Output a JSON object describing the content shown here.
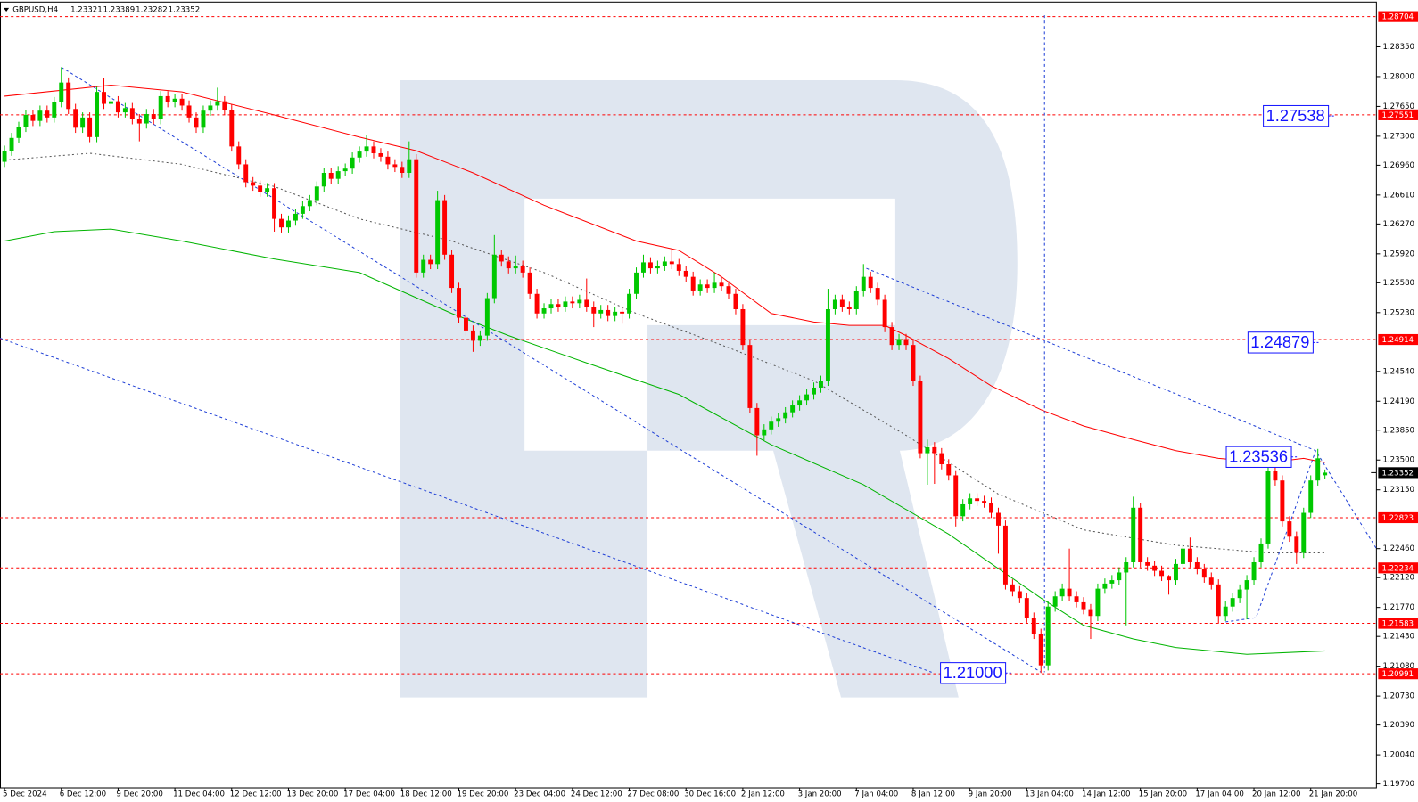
{
  "chart_data": {
    "type": "candlestick",
    "title": "GBPUSD,H4",
    "up_color": "#00c800",
    "down_color": "#ff0000",
    "open": [
      1.27,
      1.2713,
      1.2728,
      1.2741,
      1.2755,
      1.2748,
      1.276,
      1.2752,
      1.277,
      1.2793,
      1.2762,
      1.274,
      1.2752,
      1.2729,
      1.2782,
      1.2768,
      1.2771,
      1.2758,
      1.2763,
      1.275,
      1.2745,
      1.2756,
      1.275,
      1.2777,
      1.277,
      1.2774,
      1.2766,
      1.2752,
      1.274,
      1.276,
      1.2766,
      1.2771,
      1.2761,
      1.2718,
      1.2697,
      1.2676,
      1.2672,
      1.2665,
      1.2669,
      1.2633,
      1.2623,
      1.2631,
      1.2639,
      1.2648,
      1.2655,
      1.2671,
      1.2687,
      1.268,
      1.2689,
      1.2692,
      1.2705,
      1.2712,
      1.2718,
      1.271,
      1.2706,
      1.2697,
      1.2694,
      1.2687,
      1.2703,
      1.257,
      1.2585,
      1.258,
      1.2655,
      1.2591,
      1.2552,
      1.2517,
      1.2502,
      1.249,
      1.2496,
      1.254,
      1.2591,
      1.2583,
      1.2575,
      1.2578,
      1.257,
      1.2545,
      1.2522,
      1.2528,
      1.2533,
      1.253,
      1.2536,
      1.2534,
      1.2538,
      1.253,
      1.2522,
      1.2526,
      1.2519,
      1.2524,
      1.2522,
      1.2545,
      1.257,
      1.2582,
      1.2575,
      1.2578,
      1.2583,
      1.258,
      1.2572,
      1.2565,
      1.2549,
      1.2556,
      1.2552,
      1.2558,
      1.2554,
      1.2545,
      1.2527,
      1.2485,
      1.2411,
      1.2379,
      1.2386,
      1.2395,
      1.2399,
      1.2406,
      1.2414,
      1.242,
      1.2427,
      1.2435,
      1.2443,
      1.2527,
      1.2538,
      1.253,
      1.2527,
      1.2548,
      1.2565,
      1.2552,
      1.2538,
      1.2506,
      1.2485,
      1.2492,
      1.2485,
      1.2443,
      1.2358,
      1.2365,
      1.2358,
      1.2345,
      1.2332,
      1.2284,
      1.2298,
      1.2305,
      1.2302,
      1.23,
      1.2288,
      1.2273,
      1.2204,
      1.2196,
      1.2188,
      1.2165,
      1.2146,
      1.2109,
      1.2178,
      1.219,
      1.2199,
      1.219,
      1.2183,
      1.2175,
      1.2167,
      1.2199,
      1.2205,
      1.2209,
      1.2218,
      1.223,
      1.2294,
      1.223,
      1.2226,
      1.222,
      1.2214,
      1.2209,
      1.2228,
      1.2246,
      1.223,
      1.2222,
      1.2212,
      1.2204,
      1.2167,
      1.2178,
      1.2188,
      1.2198,
      1.2209,
      1.223,
      1.2252,
      1.2337,
      1.2326,
      1.2278,
      1.226,
      1.2241,
      1.2288,
      1.2326,
      1.23321
    ],
    "high": [
      1.2719,
      1.2734,
      1.2747,
      1.2761,
      1.2761,
      1.2766,
      1.2766,
      1.2776,
      1.2811,
      1.2799,
      1.2768,
      1.2758,
      1.2758,
      1.2788,
      1.2798,
      1.2777,
      1.2777,
      1.2769,
      1.2769,
      1.2756,
      1.2762,
      1.2762,
      1.2783,
      1.2783,
      1.278,
      1.278,
      1.2772,
      1.2758,
      1.2766,
      1.2772,
      1.2787,
      1.2777,
      1.2767,
      1.2724,
      1.2703,
      1.2682,
      1.2678,
      1.2675,
      1.2675,
      1.2639,
      1.2637,
      1.2645,
      1.2654,
      1.2661,
      1.2677,
      1.2693,
      1.2693,
      1.2695,
      1.2698,
      1.2711,
      1.2718,
      1.2731,
      1.2724,
      1.2716,
      1.2712,
      1.2703,
      1.27,
      1.2724,
      1.2709,
      1.2591,
      1.2591,
      1.2666,
      1.2661,
      1.2597,
      1.2558,
      1.2523,
      1.2508,
      1.2502,
      1.2546,
      1.2614,
      1.2597,
      1.2589,
      1.259,
      1.2584,
      1.2576,
      1.2551,
      1.2534,
      1.2539,
      1.2539,
      1.2542,
      1.2542,
      1.2544,
      1.2563,
      1.2536,
      1.2532,
      1.2532,
      1.253,
      1.253,
      1.2551,
      1.2576,
      1.2591,
      1.2588,
      1.2584,
      1.2589,
      1.2598,
      1.2586,
      1.2578,
      1.2571,
      1.2562,
      1.2562,
      1.257,
      1.2564,
      1.256,
      1.2551,
      1.2533,
      1.2491,
      1.2417,
      1.2392,
      1.2401,
      1.2405,
      1.2412,
      1.242,
      1.2426,
      1.2433,
      1.2441,
      1.2449,
      1.2551,
      1.2544,
      1.2544,
      1.2536,
      1.2554,
      1.258,
      1.2571,
      1.2558,
      1.2544,
      1.2512,
      1.2498,
      1.2498,
      1.2491,
      1.2449,
      1.2374,
      1.2371,
      1.2364,
      1.2351,
      1.2338,
      1.2304,
      1.2311,
      1.2311,
      1.2308,
      1.2306,
      1.2294,
      1.2279,
      1.221,
      1.2202,
      1.2194,
      1.2171,
      1.2152,
      1.2184,
      1.2196,
      1.2205,
      1.2246,
      1.2196,
      1.2189,
      1.2181,
      1.2205,
      1.2211,
      1.2215,
      1.2224,
      1.2236,
      1.2307,
      1.23,
      1.2236,
      1.2232,
      1.2226,
      1.2215,
      1.2234,
      1.2252,
      1.2259,
      1.2236,
      1.2228,
      1.2218,
      1.221,
      1.2184,
      1.2194,
      1.2204,
      1.2215,
      1.2236,
      1.2258,
      1.2343,
      1.2352,
      1.2332,
      1.2284,
      1.2266,
      1.2294,
      1.2332,
      1.2363,
      1.23389
    ],
    "low": [
      1.2694,
      1.2707,
      1.2722,
      1.2735,
      1.2742,
      1.2742,
      1.2746,
      1.2746,
      1.2764,
      1.2756,
      1.2734,
      1.2734,
      1.2723,
      1.2723,
      1.2762,
      1.2762,
      1.2752,
      1.2752,
      1.2744,
      1.2724,
      1.2739,
      1.2744,
      1.2744,
      1.2764,
      1.2764,
      1.276,
      1.2746,
      1.2734,
      1.2734,
      1.2754,
      1.276,
      1.2755,
      1.2712,
      1.2691,
      1.267,
      1.2666,
      1.2659,
      1.2659,
      1.2618,
      1.2617,
      1.2617,
      1.2625,
      1.2633,
      1.2642,
      1.2649,
      1.2665,
      1.2674,
      1.2674,
      1.2683,
      1.2686,
      1.2699,
      1.2706,
      1.2704,
      1.27,
      1.2691,
      1.2688,
      1.2681,
      1.2681,
      1.2564,
      1.2564,
      1.2574,
      1.2574,
      1.2585,
      1.2546,
      1.2511,
      1.2496,
      1.2477,
      1.2484,
      1.249,
      1.2534,
      1.2577,
      1.2569,
      1.2569,
      1.2564,
      1.2539,
      1.2516,
      1.2516,
      1.2522,
      1.2524,
      1.2524,
      1.2528,
      1.2528,
      1.2524,
      1.2506,
      1.2516,
      1.2513,
      1.2513,
      1.251,
      1.2516,
      1.2539,
      1.2564,
      1.2569,
      1.2569,
      1.2572,
      1.2574,
      1.2566,
      1.2559,
      1.2543,
      1.2543,
      1.2546,
      1.2546,
      1.2548,
      1.2539,
      1.2521,
      1.2479,
      1.2405,
      1.2355,
      1.2373,
      1.238,
      1.2389,
      1.2393,
      1.24,
      1.2408,
      1.2414,
      1.2421,
      1.2429,
      1.2437,
      1.2521,
      1.2524,
      1.2521,
      1.2521,
      1.2542,
      1.2546,
      1.2532,
      1.25,
      1.2479,
      1.2479,
      1.2479,
      1.2437,
      1.2352,
      1.2321,
      1.2322,
      1.2339,
      1.2326,
      1.2272,
      1.2278,
      1.2292,
      1.2296,
      1.2294,
      1.2282,
      1.224,
      1.2198,
      1.219,
      1.2182,
      1.2159,
      1.214,
      1.21,
      1.2103,
      1.2172,
      1.2184,
      1.2184,
      1.2177,
      1.2169,
      1.214,
      1.2161,
      1.2193,
      1.2199,
      1.2203,
      1.2156,
      1.2224,
      1.2224,
      1.222,
      1.2214,
      1.2208,
      1.2192,
      1.2203,
      1.2222,
      1.2224,
      1.2216,
      1.2206,
      1.2198,
      1.2158,
      1.2161,
      1.2172,
      1.2182,
      1.2163,
      1.2203,
      1.2224,
      1.2246,
      1.232,
      1.2272,
      1.2254,
      1.2228,
      1.2235,
      1.2282,
      1.232,
      1.23282
    ],
    "close": [
      1.2713,
      1.2728,
      1.2741,
      1.2755,
      1.2748,
      1.276,
      1.2752,
      1.277,
      1.2793,
      1.2762,
      1.274,
      1.2752,
      1.2729,
      1.2782,
      1.2768,
      1.2771,
      1.2758,
      1.2763,
      1.275,
      1.2745,
      1.2756,
      1.275,
      1.2777,
      1.277,
      1.2774,
      1.2766,
      1.2752,
      1.274,
      1.276,
      1.2766,
      1.2771,
      1.2761,
      1.2718,
      1.2697,
      1.2676,
      1.2672,
      1.2665,
      1.2669,
      1.2633,
      1.2623,
      1.2631,
      1.2639,
      1.2648,
      1.2655,
      1.2671,
      1.2687,
      1.268,
      1.2689,
      1.2692,
      1.2705,
      1.2712,
      1.2718,
      1.271,
      1.2706,
      1.2697,
      1.2694,
      1.2687,
      1.2703,
      1.257,
      1.2585,
      1.258,
      1.2655,
      1.2591,
      1.2552,
      1.2517,
      1.2502,
      1.249,
      1.2496,
      1.254,
      1.2591,
      1.2583,
      1.2575,
      1.2578,
      1.257,
      1.2545,
      1.2522,
      1.2528,
      1.2533,
      1.253,
      1.2536,
      1.2534,
      1.2538,
      1.253,
      1.2522,
      1.2526,
      1.2519,
      1.2524,
      1.2522,
      1.2545,
      1.257,
      1.2582,
      1.2575,
      1.2578,
      1.2583,
      1.258,
      1.2572,
      1.2565,
      1.2549,
      1.2556,
      1.2552,
      1.2558,
      1.2554,
      1.2545,
      1.2527,
      1.2485,
      1.2411,
      1.2379,
      1.2386,
      1.2395,
      1.2399,
      1.2406,
      1.2414,
      1.242,
      1.2427,
      1.2435,
      1.2443,
      1.2527,
      1.2538,
      1.253,
      1.2527,
      1.2548,
      1.2565,
      1.2552,
      1.2538,
      1.2506,
      1.2485,
      1.2492,
      1.2485,
      1.2443,
      1.2358,
      1.2365,
      1.2358,
      1.2345,
      1.2332,
      1.2284,
      1.2298,
      1.2305,
      1.2302,
      1.23,
      1.2288,
      1.2273,
      1.2204,
      1.2196,
      1.2188,
      1.2165,
      1.2146,
      1.2109,
      1.2178,
      1.219,
      1.2199,
      1.219,
      1.2183,
      1.2175,
      1.2167,
      1.2199,
      1.2205,
      1.2209,
      1.2218,
      1.223,
      1.2294,
      1.223,
      1.2226,
      1.222,
      1.2214,
      1.2209,
      1.2228,
      1.2246,
      1.223,
      1.2222,
      1.2212,
      1.2204,
      1.2167,
      1.2178,
      1.2188,
      1.2198,
      1.2209,
      1.223,
      1.2252,
      1.2337,
      1.2326,
      1.2278,
      1.226,
      1.2241,
      1.2288,
      1.2326,
      1.2352,
      1.23352
    ],
    "xlim": [
      -0.637,
      193.25
    ],
    "xticks": [
      {
        "value": 0,
        "label": "5 Dec 2024"
      },
      {
        "value": 8,
        "label": "6 Dec 12:00"
      },
      {
        "value": 16,
        "label": "9 Dec 20:00"
      },
      {
        "value": 24,
        "label": "11 Dec 04:00"
      },
      {
        "value": 32,
        "label": "12 Dec 12:00"
      },
      {
        "value": 40,
        "label": "13 Dec 20:00"
      },
      {
        "value": 48,
        "label": "17 Dec 04:00"
      },
      {
        "value": 56,
        "label": "18 Dec 12:00"
      },
      {
        "value": 64,
        "label": "19 Dec 20:00"
      },
      {
        "value": 72,
        "label": "23 Dec 04:00"
      },
      {
        "value": 80,
        "label": "24 Dec 12:00"
      },
      {
        "value": 88,
        "label": "27 Dec 08:00"
      },
      {
        "value": 96,
        "label": "30 Dec 16:00"
      },
      {
        "value": 104,
        "label": "2 Jan 12:00"
      },
      {
        "value": 112,
        "label": "3 Jan 20:00"
      },
      {
        "value": 120,
        "label": "7 Jan 04:00"
      },
      {
        "value": 128,
        "label": "8 Jan 12:00"
      },
      {
        "value": 136,
        "label": "9 Jan 20:00"
      },
      {
        "value": 144,
        "label": "13 Jan 04:00"
      },
      {
        "value": 152,
        "label": "14 Jan 12:00"
      },
      {
        "value": 160,
        "label": "15 Jan 20:00"
      },
      {
        "value": 168,
        "label": "17 Jan 04:00"
      },
      {
        "value": 176,
        "label": "20 Jan 12:00"
      },
      {
        "value": 184,
        "label": "21 Jan 20:00"
      }
    ],
    "ylim": [
      1.19654,
      1.2888
    ],
    "yticks": [
      {
        "value": 1.2835,
        "label": "1.28350"
      },
      {
        "value": 1.28,
        "label": "1.28000"
      },
      {
        "value": 1.2765,
        "label": "1.27650"
      },
      {
        "value": 1.273,
        "label": "1.27300"
      },
      {
        "value": 1.2696,
        "label": "1.26960"
      },
      {
        "value": 1.2661,
        "label": "1.26610"
      },
      {
        "value": 1.2627,
        "label": "1.26270"
      },
      {
        "value": 1.2592,
        "label": "1.25920"
      },
      {
        "value": 1.2558,
        "label": "1.25580"
      },
      {
        "value": 1.2523,
        "label": "1.25230"
      },
      {
        "value": 1.2454,
        "label": "1.24540"
      },
      {
        "value": 1.2419,
        "label": "1.24190"
      },
      {
        "value": 1.2385,
        "label": "1.23850"
      },
      {
        "value": 1.235,
        "label": "1.23500"
      },
      {
        "value": 1.2315,
        "label": "1.23150"
      },
      {
        "value": 1.2246,
        "label": "1.22460"
      },
      {
        "value": 1.2212,
        "label": "1.22120"
      },
      {
        "value": 1.2177,
        "label": "1.21770"
      },
      {
        "value": 1.2143,
        "label": "1.21430"
      },
      {
        "value": 1.2108,
        "label": "1.21080"
      },
      {
        "value": 1.2073,
        "label": "1.20730"
      },
      {
        "value": 1.2039,
        "label": "1.20390"
      },
      {
        "value": 1.2004,
        "label": "1.20040"
      },
      {
        "value": 1.197,
        "label": "1.19700"
      }
    ],
    "levels": {
      "color": "#ff0000",
      "values": [
        1.28704,
        1.27551,
        1.24914,
        1.22823,
        1.22234,
        1.21583,
        1.20991
      ]
    },
    "lines": [
      {
        "color": "#ff0000",
        "style": "solid",
        "x": [
          0,
          15,
          25,
          38,
          50,
          58,
          66,
          76,
          89,
          95,
          101,
          108,
          114,
          119,
          124,
          127,
          133,
          139,
          146,
          152,
          159,
          165,
          171,
          178,
          183,
          186
        ],
        "values": [
          1.2777,
          1.279,
          1.2782,
          1.2755,
          1.2729,
          1.2713,
          1.2687,
          1.2649,
          1.2607,
          1.2596,
          1.2565,
          1.2522,
          1.2512,
          1.2508,
          1.2508,
          1.2496,
          1.2469,
          1.2437,
          1.2409,
          1.239,
          1.2374,
          1.2361,
          1.2352,
          1.2347,
          1.2352,
          1.2347
        ]
      },
      {
        "color": "#555555",
        "style": "dotted",
        "x": [
          0,
          12,
          25,
          38,
          50,
          63,
          76,
          89,
          101,
          114,
          127,
          140,
          152,
          165,
          178,
          186
        ],
        "values": [
          1.2702,
          1.271,
          1.2697,
          1.2671,
          1.2633,
          1.2607,
          1.257,
          1.2522,
          1.2485,
          1.2443,
          1.2379,
          1.231,
          1.2268,
          1.225,
          1.2241,
          1.2241
        ]
      },
      {
        "color": "#00b400",
        "style": "solid",
        "x": [
          0,
          7,
          15,
          25,
          38,
          50,
          63,
          71,
          82,
          95,
          108,
          121,
          133,
          146,
          152,
          159,
          165,
          175,
          186
        ],
        "values": [
          1.2607,
          1.2618,
          1.2621,
          1.2607,
          1.2586,
          1.257,
          1.2522,
          1.2496,
          1.2464,
          1.2427,
          1.2368,
          1.2321,
          1.2263,
          1.2188,
          1.2156,
          1.214,
          1.213,
          1.2122,
          1.2126
        ]
      },
      {
        "color": "#1f3fd6",
        "style": "dashed",
        "x": [
          8,
          146
        ],
        "values": [
          1.2811,
          1.2101
        ]
      },
      {
        "color": "#1f3fd6",
        "style": "dashed",
        "x": [
          -0.637,
          130.6
        ],
        "values": [
          1.2493,
          1.2101
        ]
      },
      {
        "color": "#1f3fd6",
        "style": "dashed",
        "x": [
          146.5,
          146.5
        ],
        "values": [
          1.2872,
          1.2101
        ]
      },
      {
        "color": "#1f3fd6",
        "style": "dashed",
        "x": [
          121.4,
          184.7,
          193.25
        ],
        "values": [
          1.2575,
          1.2361,
          1.2246
        ]
      },
      {
        "color": "#1f3fd6",
        "style": "dashed",
        "x": [
          172,
          176.3,
          184.7
        ],
        "values": [
          1.216,
          1.2165,
          1.2361
        ]
      }
    ],
    "annotation_color": "#1414ff",
    "annotations": [
      1.27538,
      1.24879,
      1.23536,
      {
        "value": 1.21,
        "label": "1.21000"
      }
    ]
  }
}
